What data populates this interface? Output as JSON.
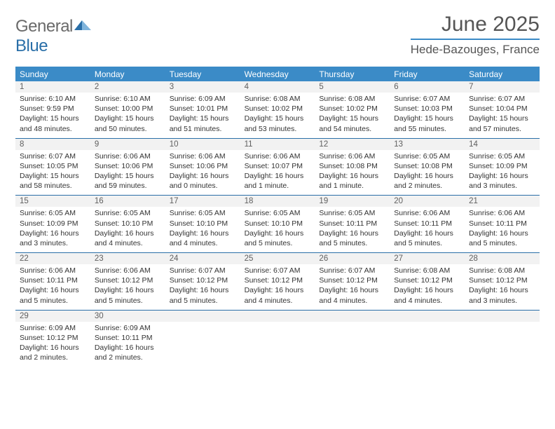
{
  "logo": {
    "word1": "General",
    "word2": "Blue"
  },
  "title": "June 2025",
  "location": "Hede-Bazouges, France",
  "colors": {
    "header_blue": "#3b8bc7",
    "accent_blue": "#2a6fa8",
    "cell_bg": "#f2f2f2",
    "page_bg": "#ffffff",
    "text_dark": "#404040"
  },
  "weekdays": [
    "Sunday",
    "Monday",
    "Tuesday",
    "Wednesday",
    "Thursday",
    "Friday",
    "Saturday"
  ],
  "weeks": [
    [
      {
        "n": "1",
        "sr": "Sunrise: 6:10 AM",
        "ss": "Sunset: 9:59 PM",
        "dl": "Daylight: 15 hours and 48 minutes."
      },
      {
        "n": "2",
        "sr": "Sunrise: 6:10 AM",
        "ss": "Sunset: 10:00 PM",
        "dl": "Daylight: 15 hours and 50 minutes."
      },
      {
        "n": "3",
        "sr": "Sunrise: 6:09 AM",
        "ss": "Sunset: 10:01 PM",
        "dl": "Daylight: 15 hours and 51 minutes."
      },
      {
        "n": "4",
        "sr": "Sunrise: 6:08 AM",
        "ss": "Sunset: 10:02 PM",
        "dl": "Daylight: 15 hours and 53 minutes."
      },
      {
        "n": "5",
        "sr": "Sunrise: 6:08 AM",
        "ss": "Sunset: 10:02 PM",
        "dl": "Daylight: 15 hours and 54 minutes."
      },
      {
        "n": "6",
        "sr": "Sunrise: 6:07 AM",
        "ss": "Sunset: 10:03 PM",
        "dl": "Daylight: 15 hours and 55 minutes."
      },
      {
        "n": "7",
        "sr": "Sunrise: 6:07 AM",
        "ss": "Sunset: 10:04 PM",
        "dl": "Daylight: 15 hours and 57 minutes."
      }
    ],
    [
      {
        "n": "8",
        "sr": "Sunrise: 6:07 AM",
        "ss": "Sunset: 10:05 PM",
        "dl": "Daylight: 15 hours and 58 minutes."
      },
      {
        "n": "9",
        "sr": "Sunrise: 6:06 AM",
        "ss": "Sunset: 10:06 PM",
        "dl": "Daylight: 15 hours and 59 minutes."
      },
      {
        "n": "10",
        "sr": "Sunrise: 6:06 AM",
        "ss": "Sunset: 10:06 PM",
        "dl": "Daylight: 16 hours and 0 minutes."
      },
      {
        "n": "11",
        "sr": "Sunrise: 6:06 AM",
        "ss": "Sunset: 10:07 PM",
        "dl": "Daylight: 16 hours and 1 minute."
      },
      {
        "n": "12",
        "sr": "Sunrise: 6:06 AM",
        "ss": "Sunset: 10:08 PM",
        "dl": "Daylight: 16 hours and 1 minute."
      },
      {
        "n": "13",
        "sr": "Sunrise: 6:05 AM",
        "ss": "Sunset: 10:08 PM",
        "dl": "Daylight: 16 hours and 2 minutes."
      },
      {
        "n": "14",
        "sr": "Sunrise: 6:05 AM",
        "ss": "Sunset: 10:09 PM",
        "dl": "Daylight: 16 hours and 3 minutes."
      }
    ],
    [
      {
        "n": "15",
        "sr": "Sunrise: 6:05 AM",
        "ss": "Sunset: 10:09 PM",
        "dl": "Daylight: 16 hours and 3 minutes."
      },
      {
        "n": "16",
        "sr": "Sunrise: 6:05 AM",
        "ss": "Sunset: 10:10 PM",
        "dl": "Daylight: 16 hours and 4 minutes."
      },
      {
        "n": "17",
        "sr": "Sunrise: 6:05 AM",
        "ss": "Sunset: 10:10 PM",
        "dl": "Daylight: 16 hours and 4 minutes."
      },
      {
        "n": "18",
        "sr": "Sunrise: 6:05 AM",
        "ss": "Sunset: 10:10 PM",
        "dl": "Daylight: 16 hours and 5 minutes."
      },
      {
        "n": "19",
        "sr": "Sunrise: 6:05 AM",
        "ss": "Sunset: 10:11 PM",
        "dl": "Daylight: 16 hours and 5 minutes."
      },
      {
        "n": "20",
        "sr": "Sunrise: 6:06 AM",
        "ss": "Sunset: 10:11 PM",
        "dl": "Daylight: 16 hours and 5 minutes."
      },
      {
        "n": "21",
        "sr": "Sunrise: 6:06 AM",
        "ss": "Sunset: 10:11 PM",
        "dl": "Daylight: 16 hours and 5 minutes."
      }
    ],
    [
      {
        "n": "22",
        "sr": "Sunrise: 6:06 AM",
        "ss": "Sunset: 10:11 PM",
        "dl": "Daylight: 16 hours and 5 minutes."
      },
      {
        "n": "23",
        "sr": "Sunrise: 6:06 AM",
        "ss": "Sunset: 10:12 PM",
        "dl": "Daylight: 16 hours and 5 minutes."
      },
      {
        "n": "24",
        "sr": "Sunrise: 6:07 AM",
        "ss": "Sunset: 10:12 PM",
        "dl": "Daylight: 16 hours and 5 minutes."
      },
      {
        "n": "25",
        "sr": "Sunrise: 6:07 AM",
        "ss": "Sunset: 10:12 PM",
        "dl": "Daylight: 16 hours and 4 minutes."
      },
      {
        "n": "26",
        "sr": "Sunrise: 6:07 AM",
        "ss": "Sunset: 10:12 PM",
        "dl": "Daylight: 16 hours and 4 minutes."
      },
      {
        "n": "27",
        "sr": "Sunrise: 6:08 AM",
        "ss": "Sunset: 10:12 PM",
        "dl": "Daylight: 16 hours and 4 minutes."
      },
      {
        "n": "28",
        "sr": "Sunrise: 6:08 AM",
        "ss": "Sunset: 10:12 PM",
        "dl": "Daylight: 16 hours and 3 minutes."
      }
    ],
    [
      {
        "n": "29",
        "sr": "Sunrise: 6:09 AM",
        "ss": "Sunset: 10:12 PM",
        "dl": "Daylight: 16 hours and 2 minutes."
      },
      {
        "n": "30",
        "sr": "Sunrise: 6:09 AM",
        "ss": "Sunset: 10:11 PM",
        "dl": "Daylight: 16 hours and 2 minutes."
      },
      null,
      null,
      null,
      null,
      null
    ]
  ]
}
